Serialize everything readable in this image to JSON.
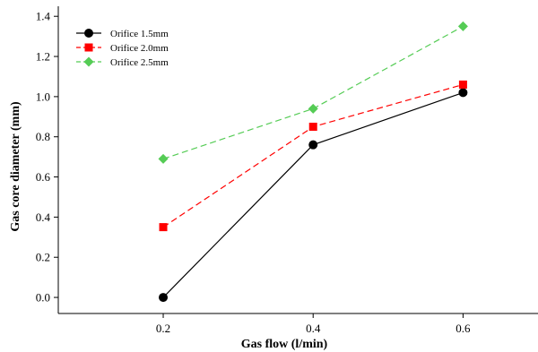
{
  "chart_data": {
    "type": "line",
    "title": "",
    "xlabel": "Gas flow (l/min)",
    "ylabel": "Gas core diameter (mm)",
    "x": [
      0.2,
      0.4,
      0.6
    ],
    "xlim": [
      0.06,
      0.7
    ],
    "ylim": [
      -0.08,
      1.45
    ],
    "x_ticks": [
      0.2,
      0.4,
      0.6
    ],
    "y_ticks": [
      0.0,
      0.2,
      0.4,
      0.6,
      0.8,
      1.0,
      1.2,
      1.4
    ],
    "x_tick_labels": [
      "0.2",
      "0.4",
      "0.6"
    ],
    "y_tick_labels": [
      "0.0",
      "0.2",
      "0.4",
      "0.6",
      "0.8",
      "1.0",
      "1.2",
      "1.4"
    ],
    "grid": false,
    "legend_position": "top-left",
    "series": [
      {
        "name": "Orifice 1.5mm",
        "values": [
          0.0,
          0.76,
          1.02
        ],
        "color": "#000000",
        "marker": "circle",
        "line_style": "solid"
      },
      {
        "name": "Orifice 2.0mm",
        "values": [
          0.35,
          0.85,
          1.06
        ],
        "color": "#ff0000",
        "marker": "square",
        "line_style": "dashed"
      },
      {
        "name": "Orifice 2.5mm",
        "values": [
          0.69,
          0.94,
          1.35
        ],
        "color": "#55cc55",
        "marker": "diamond",
        "line_style": "dashed"
      }
    ]
  }
}
